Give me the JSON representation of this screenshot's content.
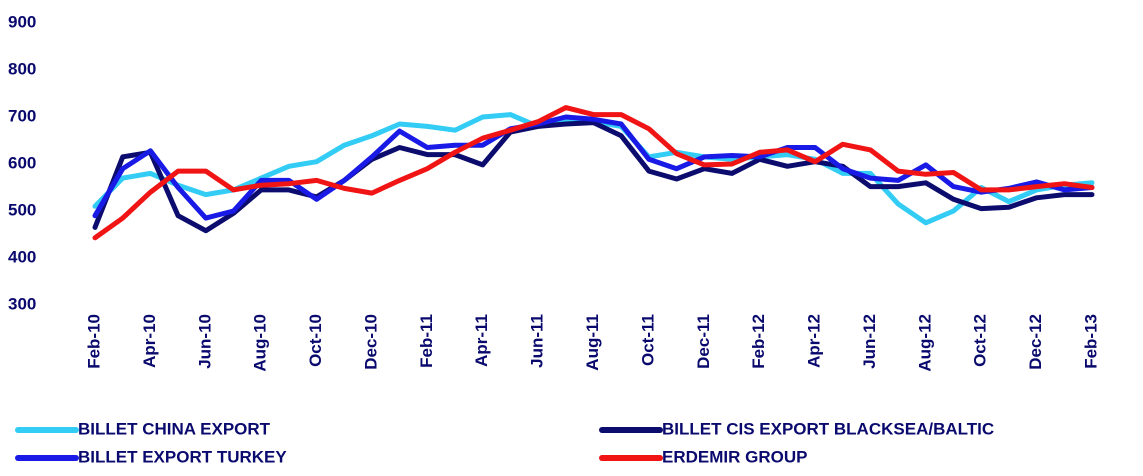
{
  "chart_data": {
    "type": "line",
    "categories": [
      "Feb-10",
      null,
      "Apr-10",
      null,
      "Jun-10",
      null,
      "Aug-10",
      null,
      "Oct-10",
      null,
      "Dec-10",
      null,
      "Feb-11",
      null,
      "Apr-11",
      null,
      "Jun-11",
      null,
      "Aug-11",
      null,
      "Oct-11",
      null,
      "Dec-11",
      null,
      "Feb-12",
      null,
      "Apr-12",
      null,
      "Jun-12",
      null,
      "Aug-12",
      null,
      "Oct-12",
      null,
      "Dec-12",
      null,
      "Feb-13"
    ],
    "series": [
      {
        "name": "BILLET CHINA EXPORT",
        "color": "#33ccf5",
        "values": [
          510,
          570,
          580,
          555,
          535,
          545,
          570,
          595,
          605,
          640,
          660,
          685,
          680,
          672,
          700,
          705,
          680,
          690,
          690,
          680,
          615,
          625,
          615,
          610,
          615,
          620,
          610,
          580,
          580,
          515,
          475,
          500,
          550,
          520,
          545,
          555,
          560
        ]
      },
      {
        "name": "BILLET CIS EXPORT BLACKSEA/BALTIC",
        "color": "#0c0c6e",
        "values": [
          465,
          615,
          625,
          490,
          458,
          495,
          545,
          545,
          530,
          565,
          610,
          635,
          620,
          620,
          598,
          668,
          680,
          685,
          688,
          660,
          585,
          568,
          590,
          580,
          610,
          595,
          605,
          595,
          552,
          552,
          560,
          525,
          505,
          508,
          528,
          535,
          535
        ]
      },
      {
        "name": "BILLET EXPORT TURKEY",
        "color": "#1a1ae6",
        "values": [
          490,
          590,
          628,
          550,
          485,
          500,
          565,
          565,
          525,
          565,
          615,
          670,
          635,
          640,
          640,
          675,
          685,
          700,
          695,
          685,
          610,
          590,
          615,
          618,
          615,
          635,
          635,
          590,
          570,
          565,
          598,
          552,
          540,
          548,
          562,
          545,
          550
        ]
      },
      {
        "name": "ERDEMIR GROUP",
        "color": "#f01414",
        "values": [
          443,
          485,
          540,
          585,
          585,
          545,
          555,
          558,
          565,
          548,
          538,
          565,
          590,
          625,
          655,
          672,
          690,
          720,
          705,
          705,
          675,
          622,
          598,
          600,
          625,
          630,
          605,
          642,
          630,
          585,
          578,
          582,
          545,
          545,
          552,
          558,
          550
        ]
      }
    ],
    "ylim": [
      300,
      900
    ],
    "yticks": [
      300,
      400,
      500,
      600,
      700,
      800,
      900
    ]
  }
}
